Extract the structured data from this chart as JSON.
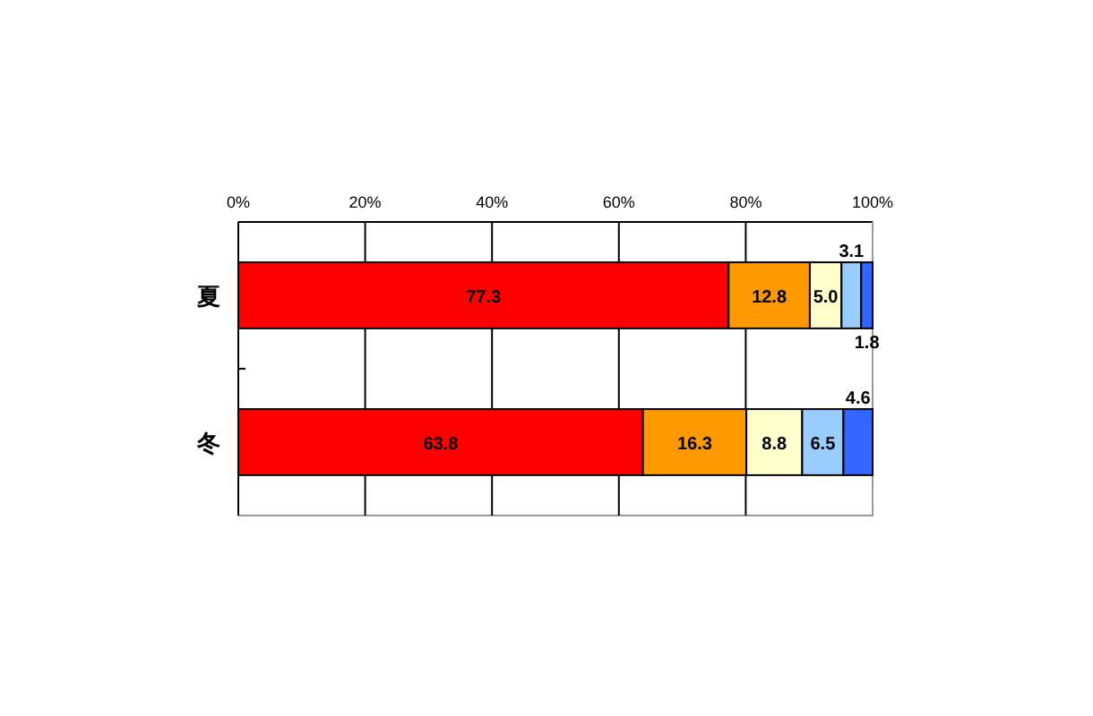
{
  "chart_data": {
    "type": "bar",
    "orientation": "horizontal",
    "stacked": true,
    "categories": [
      "夏",
      "冬"
    ],
    "series": [
      {
        "color": "#ff0000",
        "values": [
          77.3,
          63.8
        ],
        "value_labels": [
          "77.3",
          "63.8"
        ]
      },
      {
        "color": "#ff9900",
        "values": [
          12.8,
          16.3
        ],
        "value_labels": [
          "12.8",
          "16.3"
        ]
      },
      {
        "color": "#ffffcc",
        "values": [
          5.0,
          8.8
        ],
        "value_labels": [
          "5.0",
          "8.8"
        ]
      },
      {
        "color": "#99ccff",
        "values": [
          3.1,
          6.5
        ],
        "value_labels": [
          "3.1",
          "6.5"
        ]
      },
      {
        "color": "#3366ff",
        "values": [
          1.8,
          4.6
        ],
        "value_labels": [
          "1.8",
          "4.6"
        ]
      }
    ],
    "xlim": [
      0,
      100
    ],
    "xticks": [
      {
        "value": 0,
        "label": "0%"
      },
      {
        "value": 20,
        "label": "20%"
      },
      {
        "value": 40,
        "label": "40%"
      },
      {
        "value": 60,
        "label": "60%"
      },
      {
        "value": 80,
        "label": "80%"
      },
      {
        "value": 100,
        "label": "100%"
      }
    ],
    "grid": "x"
  }
}
